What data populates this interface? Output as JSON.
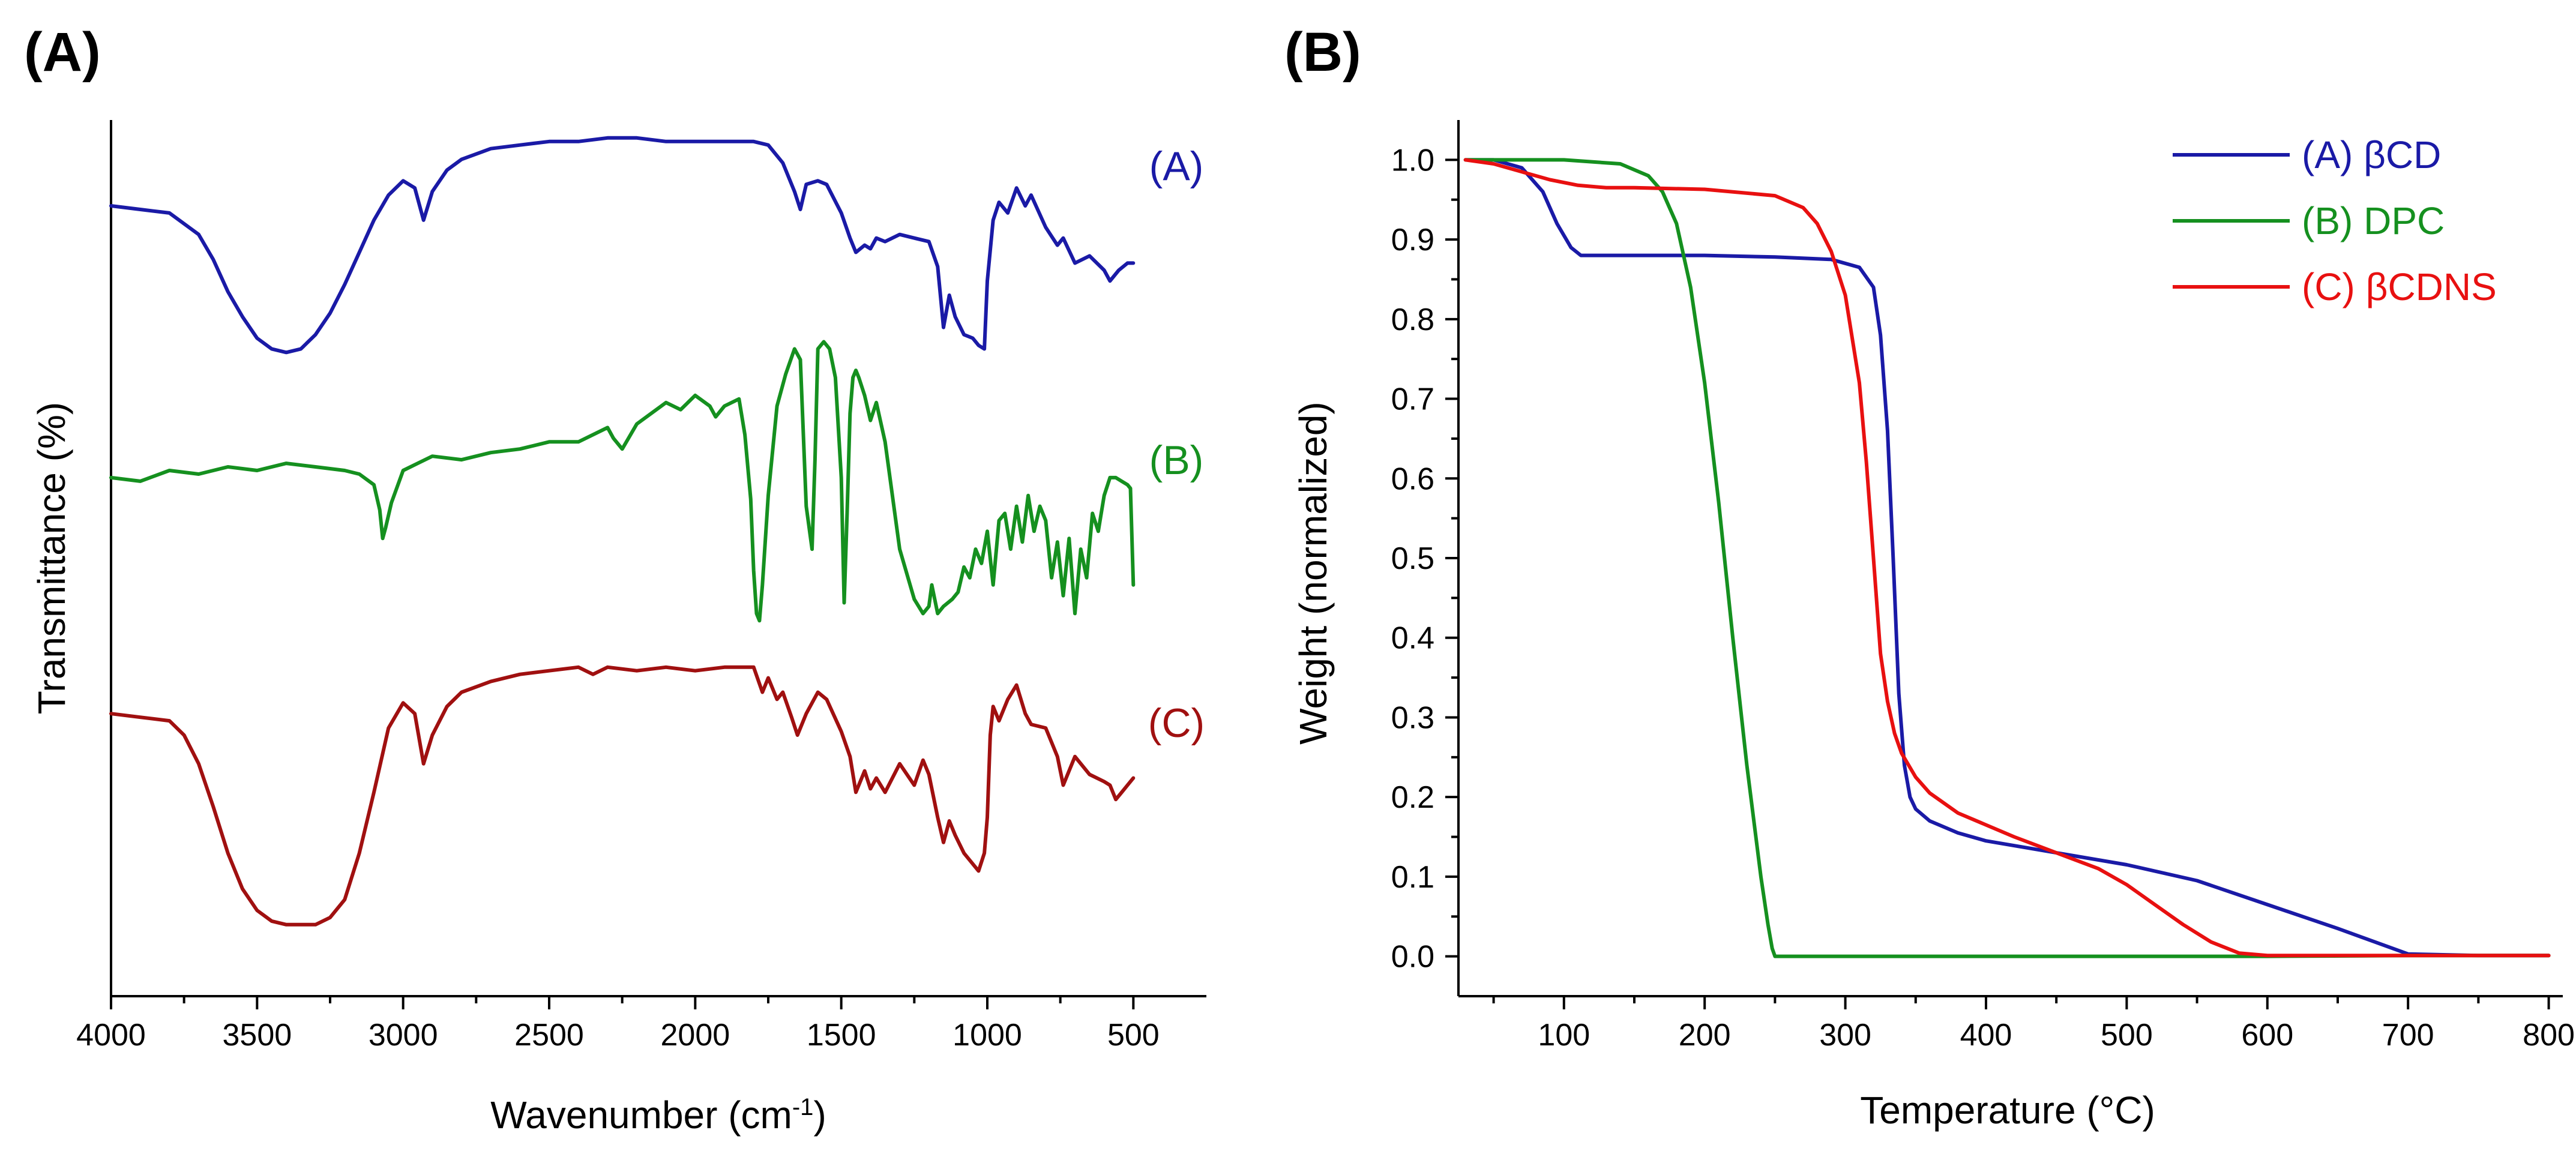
{
  "panel_labels": {
    "a": "(A)",
    "b": "(B)"
  },
  "chart_data": [
    {
      "type": "line",
      "panel": "(A)",
      "title": "",
      "xlabel": "Wavenumber (cm",
      "xlabel_superscript": "-1",
      "xlabel_suffix": ")",
      "ylabel": "Transmittance (%)",
      "xlim": [
        4000,
        250
      ],
      "ylim": [
        -1.45,
        1.0
      ],
      "x_reversed": true,
      "y_ticks_shown": false,
      "xticks": [
        4000,
        3500,
        3000,
        2500,
        2000,
        1500,
        1000,
        500
      ],
      "xtick_labels": [
        "4000",
        "3500",
        "3000",
        "2500",
        "2000",
        "1500",
        "1000",
        "500"
      ],
      "grid": false,
      "series": [
        {
          "name": "(A)",
          "color": "#1a1aa6",
          "x": [
            4000,
            3900,
            3800,
            3700,
            3650,
            3600,
            3550,
            3500,
            3450,
            3400,
            3350,
            3300,
            3250,
            3200,
            3150,
            3100,
            3050,
            3000,
            2960,
            2930,
            2900,
            2850,
            2800,
            2700,
            2600,
            2500,
            2400,
            2300,
            2200,
            2100,
            2000,
            1900,
            1800,
            1750,
            1700,
            1660,
            1640,
            1620,
            1580,
            1550,
            1500,
            1470,
            1450,
            1420,
            1400,
            1380,
            1350,
            1300,
            1250,
            1200,
            1170,
            1150,
            1130,
            1110,
            1080,
            1050,
            1030,
            1010,
            1000,
            980,
            960,
            930,
            900,
            870,
            850,
            800,
            760,
            740,
            700,
            650,
            600,
            580,
            550,
            520,
            500
          ],
          "y": [
            0.76,
            0.75,
            0.74,
            0.68,
            0.61,
            0.52,
            0.45,
            0.39,
            0.36,
            0.35,
            0.36,
            0.4,
            0.46,
            0.54,
            0.63,
            0.72,
            0.79,
            0.83,
            0.81,
            0.72,
            0.8,
            0.86,
            0.89,
            0.92,
            0.93,
            0.94,
            0.94,
            0.95,
            0.95,
            0.94,
            0.94,
            0.94,
            0.94,
            0.93,
            0.88,
            0.8,
            0.75,
            0.82,
            0.83,
            0.82,
            0.74,
            0.67,
            0.63,
            0.65,
            0.64,
            0.67,
            0.66,
            0.68,
            0.67,
            0.66,
            0.59,
            0.42,
            0.51,
            0.45,
            0.4,
            0.39,
            0.37,
            0.36,
            0.55,
            0.72,
            0.77,
            0.74,
            0.81,
            0.76,
            0.79,
            0.7,
            0.65,
            0.67,
            0.6,
            0.62,
            0.58,
            0.55,
            0.58,
            0.6,
            0.6
          ]
        },
        {
          "name": "(B)",
          "color": "#15901f",
          "x": [
            4000,
            3900,
            3800,
            3700,
            3600,
            3500,
            3400,
            3300,
            3200,
            3150,
            3100,
            3080,
            3070,
            3060,
            3040,
            3000,
            2950,
            2900,
            2800,
            2700,
            2600,
            2500,
            2400,
            2300,
            2280,
            2250,
            2200,
            2150,
            2100,
            2050,
            2000,
            1950,
            1930,
            1900,
            1850,
            1830,
            1810,
            1800,
            1790,
            1780,
            1770,
            1750,
            1720,
            1690,
            1660,
            1640,
            1620,
            1600,
            1590,
            1580,
            1560,
            1540,
            1520,
            1500,
            1490,
            1480,
            1470,
            1460,
            1450,
            1440,
            1420,
            1400,
            1380,
            1350,
            1300,
            1250,
            1220,
            1200,
            1190,
            1170,
            1150,
            1120,
            1100,
            1080,
            1060,
            1040,
            1020,
            1000,
            980,
            960,
            940,
            920,
            900,
            880,
            860,
            840,
            820,
            800,
            780,
            760,
            740,
            720,
            700,
            680,
            660,
            640,
            620,
            600,
            580,
            560,
            540,
            520,
            510,
            500
          ],
          "y": [
            0.0,
            -0.01,
            0.02,
            0.01,
            0.03,
            0.02,
            0.04,
            0.03,
            0.02,
            0.01,
            -0.02,
            -0.09,
            -0.17,
            -0.14,
            -0.07,
            0.02,
            0.04,
            0.06,
            0.05,
            0.07,
            0.08,
            0.1,
            0.1,
            0.14,
            0.11,
            0.08,
            0.15,
            0.18,
            0.21,
            0.19,
            0.23,
            0.2,
            0.17,
            0.2,
            0.22,
            0.12,
            -0.06,
            -0.26,
            -0.38,
            -0.4,
            -0.3,
            -0.05,
            0.2,
            0.29,
            0.36,
            0.33,
            -0.08,
            -0.2,
            0.05,
            0.36,
            0.38,
            0.36,
            0.28,
            0.0,
            -0.35,
            -0.1,
            0.18,
            0.28,
            0.3,
            0.28,
            0.23,
            0.16,
            0.21,
            0.1,
            -0.2,
            -0.34,
            -0.38,
            -0.36,
            -0.3,
            -0.38,
            -0.36,
            -0.34,
            -0.32,
            -0.25,
            -0.28,
            -0.2,
            -0.24,
            -0.15,
            -0.3,
            -0.12,
            -0.1,
            -0.2,
            -0.08,
            -0.18,
            -0.05,
            -0.15,
            -0.08,
            -0.12,
            -0.28,
            -0.18,
            -0.33,
            -0.17,
            -0.38,
            -0.2,
            -0.28,
            -0.1,
            -0.15,
            -0.05,
            0.0,
            0.0,
            -0.01,
            -0.02,
            -0.03,
            -0.3
          ]
        },
        {
          "name": "(C)",
          "color": "#a01010",
          "x": [
            4000,
            3900,
            3800,
            3750,
            3700,
            3650,
            3600,
            3550,
            3500,
            3450,
            3400,
            3350,
            3300,
            3250,
            3200,
            3150,
            3100,
            3050,
            3000,
            2960,
            2930,
            2900,
            2850,
            2800,
            2700,
            2600,
            2500,
            2400,
            2350,
            2300,
            2200,
            2100,
            2000,
            1900,
            1800,
            1770,
            1750,
            1720,
            1700,
            1670,
            1650,
            1620,
            1580,
            1550,
            1500,
            1470,
            1450,
            1420,
            1400,
            1380,
            1350,
            1300,
            1250,
            1220,
            1200,
            1170,
            1150,
            1130,
            1110,
            1080,
            1050,
            1030,
            1010,
            1000,
            990,
            980,
            960,
            930,
            900,
            870,
            850,
            800,
            760,
            740,
            700,
            650,
            600,
            580,
            560,
            540,
            520,
            500
          ],
          "y": [
            -0.66,
            -0.67,
            -0.68,
            -0.72,
            -0.8,
            -0.92,
            -1.05,
            -1.15,
            -1.21,
            -1.24,
            -1.25,
            -1.25,
            -1.25,
            -1.23,
            -1.18,
            -1.05,
            -0.88,
            -0.7,
            -0.63,
            -0.66,
            -0.8,
            -0.72,
            -0.64,
            -0.6,
            -0.57,
            -0.55,
            -0.54,
            -0.53,
            -0.55,
            -0.53,
            -0.54,
            -0.53,
            -0.54,
            -0.53,
            -0.53,
            -0.6,
            -0.56,
            -0.62,
            -0.6,
            -0.67,
            -0.72,
            -0.66,
            -0.6,
            -0.62,
            -0.71,
            -0.78,
            -0.88,
            -0.82,
            -0.87,
            -0.84,
            -0.88,
            -0.8,
            -0.86,
            -0.79,
            -0.83,
            -0.95,
            -1.02,
            -0.96,
            -1.0,
            -1.05,
            -1.08,
            -1.1,
            -1.05,
            -0.95,
            -0.72,
            -0.64,
            -0.68,
            -0.62,
            -0.58,
            -0.66,
            -0.69,
            -0.7,
            -0.78,
            -0.86,
            -0.78,
            -0.83,
            -0.85,
            -0.86,
            -0.9,
            -0.88,
            -0.86,
            -0.84
          ]
        }
      ],
      "trace_labels": [
        {
          "text": "(A)",
          "color": "#1a1aa6"
        },
        {
          "text": "(B)",
          "color": "#15901f"
        },
        {
          "text": "(C)",
          "color": "#a01010"
        }
      ]
    },
    {
      "type": "line",
      "panel": "(B)",
      "title": "",
      "xlabel": "Temperature (°C)",
      "ylabel": "Weight (normalized)",
      "xlim": [
        25,
        810
      ],
      "ylim": [
        -0.05,
        1.05
      ],
      "xticks": [
        100,
        200,
        300,
        400,
        500,
        600,
        700,
        800
      ],
      "xtick_labels": [
        "100",
        "200",
        "300",
        "400",
        "500",
        "600",
        "700",
        "800"
      ],
      "yticks": [
        0.0,
        0.1,
        0.2,
        0.3,
        0.4,
        0.5,
        0.6,
        0.7,
        0.8,
        0.9,
        1.0
      ],
      "ytick_labels": [
        "0.0",
        "0.1",
        "0.2",
        "0.3",
        "0.4",
        "0.5",
        "0.6",
        "0.7",
        "0.8",
        "0.9",
        "1.0"
      ],
      "grid": false,
      "legend_position": "top-right",
      "series": [
        {
          "name": "(A) βCD",
          "color": "#1a1aa6",
          "x": [
            30,
            50,
            70,
            85,
            95,
            105,
            112,
            120,
            150,
            200,
            250,
            290,
            310,
            320,
            325,
            330,
            334,
            338,
            342,
            346,
            350,
            360,
            380,
            400,
            450,
            500,
            550,
            600,
            650,
            700,
            750,
            800
          ],
          "y": [
            1.0,
            1.0,
            0.99,
            0.96,
            0.92,
            0.89,
            0.88,
            0.88,
            0.88,
            0.88,
            0.878,
            0.875,
            0.865,
            0.84,
            0.78,
            0.66,
            0.5,
            0.33,
            0.24,
            0.2,
            0.185,
            0.17,
            0.155,
            0.145,
            0.13,
            0.115,
            0.095,
            0.065,
            0.035,
            0.003,
            0.001,
            0.001
          ]
        },
        {
          "name": "(B) DPC",
          "color": "#15901f",
          "x": [
            30,
            100,
            140,
            160,
            170,
            180,
            190,
            200,
            210,
            220,
            230,
            240,
            245,
            248,
            250,
            255,
            300,
            400,
            500,
            600,
            700,
            800
          ],
          "y": [
            1.0,
            1.0,
            0.995,
            0.98,
            0.96,
            0.92,
            0.84,
            0.72,
            0.57,
            0.4,
            0.24,
            0.1,
            0.04,
            0.01,
            0.0,
            0.0,
            0.0,
            0.0,
            0.0,
            0.0,
            0.001,
            0.001
          ]
        },
        {
          "name": "(C) βCDNS",
          "color": "#e81010",
          "x": [
            30,
            50,
            70,
            90,
            110,
            130,
            150,
            200,
            250,
            270,
            280,
            290,
            300,
            310,
            315,
            320,
            325,
            330,
            335,
            340,
            345,
            350,
            360,
            380,
            400,
            420,
            450,
            480,
            500,
            520,
            540,
            560,
            580,
            600,
            700,
            800
          ],
          "y": [
            1.0,
            0.995,
            0.985,
            0.975,
            0.968,
            0.965,
            0.965,
            0.963,
            0.955,
            0.94,
            0.92,
            0.885,
            0.83,
            0.72,
            0.62,
            0.5,
            0.38,
            0.32,
            0.28,
            0.255,
            0.24,
            0.225,
            0.205,
            0.18,
            0.165,
            0.15,
            0.13,
            0.11,
            0.09,
            0.065,
            0.04,
            0.018,
            0.004,
            0.001,
            0.001,
            0.001
          ]
        }
      ]
    }
  ]
}
